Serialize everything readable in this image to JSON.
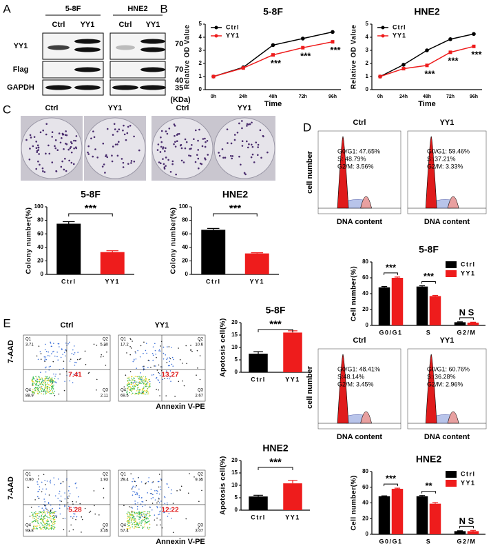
{
  "panel_labels": [
    "A",
    "B",
    "C",
    "D",
    "E"
  ],
  "blot": {
    "cell_lines": [
      "5-8F",
      "HNE2"
    ],
    "lanes": [
      "Ctrl",
      "YY1"
    ],
    "rows": [
      "YY1",
      "Flag",
      "GAPDH"
    ],
    "markers": [
      "70",
      "70",
      "40",
      "35"
    ],
    "unit": "(KDa)"
  },
  "colony_plates": {
    "columns": [
      "Ctrl",
      "YY1"
    ]
  },
  "cell_cycle_flow": {
    "columns": [
      "Ctrl",
      "YY1"
    ],
    "ylabel": "cell number",
    "xlabel": "DNA content",
    "stats": [
      [
        "G0/G1: 47.65%",
        "S: 48.79%",
        "G2/M: 3.56%"
      ],
      [
        "G0/G1: 59.46%",
        "S: 37.21%",
        "G2/M: 3.33%"
      ],
      [
        "G0/G1: 48.41%",
        "S:48.14%",
        "G2/M: 3.45%"
      ],
      [
        "G0/G1: 60.76%",
        "S: 36.28%",
        "G2/M: 2.96%"
      ]
    ]
  },
  "apoptosis_flow": {
    "columns": [
      "Ctrl",
      "YY1"
    ],
    "ylabel": "7-AAD",
    "xlabel": "Annexin V-PE",
    "quadrant_names": [
      "Q1",
      "Q2",
      "Q3",
      "Q4"
    ],
    "plots": [
      {
        "q1": "3.71",
        "q2": "5.30",
        "q3": "2.11",
        "q4": "88.9",
        "center": "7.41"
      },
      {
        "q1": "17.2",
        "q2": "10.6",
        "q3": "2.67",
        "q4": "69.5",
        "center": "13.27"
      },
      {
        "q1": "0.90",
        "q2": "1.93",
        "q3": "3.35",
        "q4": "93.8",
        "center": "5.28"
      },
      {
        "q1": "29.4",
        "q2": "9.15",
        "q3": "3.07",
        "q4": "57.4",
        "center": "12.22"
      }
    ]
  },
  "chart_data": [
    {
      "type": "line",
      "title": "5-8F",
      "xlabel": "Time",
      "ylabel": "Relative OD Value",
      "categories": [
        "0h",
        "24h",
        "48h",
        "72h",
        "96h"
      ],
      "series": [
        {
          "name": "Ctrl",
          "color": "#000000",
          "values": [
            1,
            1.7,
            3.4,
            3.9,
            4.4
          ]
        },
        {
          "name": "YY1",
          "color": "#ee1c1c",
          "values": [
            1,
            1.65,
            2.65,
            3.2,
            3.65
          ]
        }
      ],
      "ylim": [
        0,
        5
      ],
      "yticks": [
        0,
        1,
        2,
        3,
        4,
        5
      ],
      "annotations": [
        "***",
        "***",
        "***"
      ]
    },
    {
      "type": "line",
      "title": "HNE2",
      "xlabel": "Time",
      "ylabel": "Relative OD Value",
      "categories": [
        "0h",
        "24h",
        "48h",
        "72h",
        "96h"
      ],
      "series": [
        {
          "name": "Ctrl",
          "color": "#000000",
          "values": [
            1,
            1.9,
            3.0,
            3.85,
            4.25
          ]
        },
        {
          "name": "YY1",
          "color": "#ee1c1c",
          "values": [
            1,
            1.6,
            1.85,
            2.85,
            3.3
          ]
        }
      ],
      "ylim": [
        0,
        5
      ],
      "yticks": [
        0,
        1,
        2,
        3,
        4,
        5
      ],
      "annotations": [
        "***",
        "***",
        "***"
      ]
    },
    {
      "type": "bar",
      "title": "5-8F",
      "ylabel": "Colony number(%)",
      "categories": [
        "Ctrl",
        "YY1"
      ],
      "values": [
        75,
        33
      ],
      "errors": [
        3,
        2
      ],
      "colors": [
        "#000000",
        "#ee1c1c"
      ],
      "ylim": [
        0,
        100
      ],
      "yticks": [
        0,
        20,
        40,
        60,
        80,
        100
      ],
      "annotations": [
        "***"
      ]
    },
    {
      "type": "bar",
      "title": "HNE2",
      "ylabel": "Colony number(%)",
      "categories": [
        "Ctrl",
        "YY1"
      ],
      "values": [
        66,
        31
      ],
      "errors": [
        2,
        1
      ],
      "colors": [
        "#000000",
        "#ee1c1c"
      ],
      "ylim": [
        0,
        100
      ],
      "yticks": [
        0,
        20,
        40,
        60,
        80,
        100
      ],
      "annotations": [
        "***"
      ]
    },
    {
      "type": "bar",
      "title": "5-8F",
      "ylabel": "Cell number(%)",
      "categories": [
        "G0/G1",
        "S",
        "G2/M"
      ],
      "series": [
        {
          "name": "Ctrl",
          "color": "#000000",
          "values": [
            48,
            49,
            4
          ],
          "errors": [
            1,
            1,
            0.5
          ]
        },
        {
          "name": "YY1",
          "color": "#ee1c1c",
          "values": [
            60,
            37,
            3.5
          ],
          "errors": [
            1,
            0.8,
            0.5
          ]
        }
      ],
      "ylim": [
        0,
        80
      ],
      "yticks": [
        0,
        20,
        40,
        60,
        80
      ],
      "annotations": [
        "***",
        "***",
        "N S"
      ]
    },
    {
      "type": "bar",
      "title": "HNE2",
      "ylabel": "Cell number(%)",
      "categories": [
        "G0/G1",
        "S",
        "G2/M"
      ],
      "series": [
        {
          "name": "Ctrl",
          "color": "#000000",
          "values": [
            48.5,
            48.5,
            4
          ],
          "errors": [
            0.5,
            1,
            0.5
          ]
        },
        {
          "name": "YY1",
          "color": "#ee1c1c",
          "values": [
            58,
            39,
            4
          ],
          "errors": [
            0.8,
            1.5,
            1
          ]
        }
      ],
      "ylim": [
        0,
        80
      ],
      "yticks": [
        0,
        20,
        40,
        60,
        80
      ],
      "annotations": [
        "***",
        "**",
        "N S"
      ]
    },
    {
      "type": "bar",
      "title": "5-8F",
      "ylabel": "Apotosis cell(%)",
      "categories": [
        "Ctrl",
        "YY1"
      ],
      "values": [
        7.5,
        16
      ],
      "errors": [
        0.8,
        0.7
      ],
      "colors": [
        "#000000",
        "#ee1c1c"
      ],
      "ylim": [
        0,
        20
      ],
      "yticks": [
        0,
        5,
        10,
        15,
        20
      ],
      "annotations": [
        "***"
      ]
    },
    {
      "type": "bar",
      "title": "HNE2",
      "ylabel": "Apotosis cell(%)",
      "categories": [
        "Ctrl",
        "YY1"
      ],
      "values": [
        5.5,
        10.8
      ],
      "errors": [
        0.5,
        1.2
      ],
      "colors": [
        "#000000",
        "#ee1c1c"
      ],
      "ylim": [
        0,
        20
      ],
      "yticks": [
        0,
        5,
        10,
        15,
        20
      ],
      "annotations": [
        "***"
      ]
    }
  ]
}
